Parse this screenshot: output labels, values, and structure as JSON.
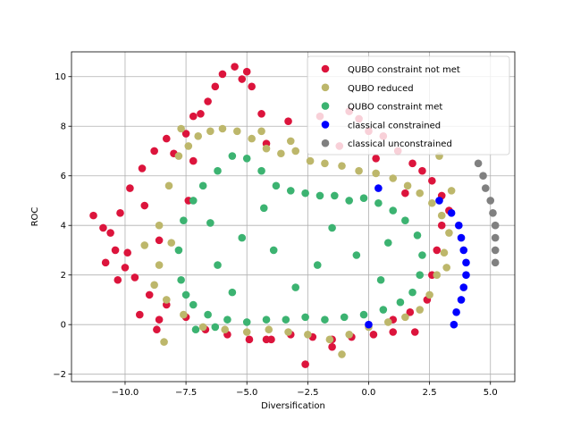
{
  "chart_data": {
    "type": "scatter",
    "title": "",
    "xlabel": "Diversification",
    "ylabel": "ROC",
    "xlim": [
      -12.2,
      6.0
    ],
    "ylim": [
      -2.3,
      11.0
    ],
    "x_ticks": [
      -10.0,
      -7.5,
      -5.0,
      -2.5,
      0.0,
      2.5,
      5.0
    ],
    "x_tick_labels": [
      "−10.0",
      "−7.5",
      "−5.0",
      "−2.5",
      "0.0",
      "2.5",
      "5.0"
    ],
    "y_ticks": [
      -2,
      0,
      2,
      4,
      6,
      8,
      10
    ],
    "y_tick_labels": [
      "−2",
      "0",
      "2",
      "4",
      "6",
      "8",
      "10"
    ],
    "grid": true,
    "legend_position": "top-right",
    "series": [
      {
        "name": "QUBO constraint not met",
        "color": "#dc143c",
        "points": [
          [
            -10.6,
            3.7
          ],
          [
            -10.4,
            3.0
          ],
          [
            -10.8,
            2.5
          ],
          [
            -10.2,
            4.5
          ],
          [
            -9.8,
            5.5
          ],
          [
            -9.3,
            6.3
          ],
          [
            -8.8,
            7.0
          ],
          [
            -8.3,
            7.5
          ],
          [
            -7.5,
            7.7
          ],
          [
            -7.2,
            8.4
          ],
          [
            -6.6,
            9.0
          ],
          [
            -6.3,
            9.6
          ],
          [
            -6.0,
            10.1
          ],
          [
            -5.5,
            10.4
          ],
          [
            -5.0,
            10.2
          ],
          [
            -4.8,
            9.6
          ],
          [
            -4.4,
            8.5
          ],
          [
            -3.3,
            8.2
          ],
          [
            -2.0,
            8.4
          ],
          [
            -0.8,
            8.6
          ],
          [
            -0.4,
            8.3
          ],
          [
            0.0,
            7.8
          ],
          [
            0.6,
            7.6
          ],
          [
            1.2,
            7.0
          ],
          [
            1.8,
            6.5
          ],
          [
            2.2,
            6.2
          ],
          [
            2.6,
            5.8
          ],
          [
            3.0,
            5.2
          ],
          [
            3.3,
            4.6
          ],
          [
            3.0,
            4.0
          ],
          [
            2.8,
            3.0
          ],
          [
            2.6,
            2.0
          ],
          [
            2.4,
            1.0
          ],
          [
            1.7,
            0.5
          ],
          [
            1.0,
            0.2
          ],
          [
            0.2,
            -0.4
          ],
          [
            -0.7,
            -0.5
          ],
          [
            -1.5,
            -0.6
          ],
          [
            -2.3,
            -0.5
          ],
          [
            -3.2,
            -0.4
          ],
          [
            -4.0,
            -0.6
          ],
          [
            -4.9,
            -0.6
          ],
          [
            -5.8,
            -0.4
          ],
          [
            -6.7,
            -0.2
          ],
          [
            -7.5,
            0.3
          ],
          [
            -8.3,
            0.8
          ],
          [
            -9.0,
            1.2
          ],
          [
            -9.6,
            1.9
          ],
          [
            -10.0,
            2.3
          ],
          [
            -11.3,
            4.4
          ],
          [
            -10.9,
            3.9
          ],
          [
            -10.3,
            1.8
          ],
          [
            -9.4,
            0.4
          ],
          [
            -8.7,
            -0.2
          ],
          [
            -8.6,
            0.2
          ],
          [
            -2.6,
            -1.6
          ],
          [
            -1.5,
            -0.9
          ],
          [
            -4.2,
            -0.6
          ],
          [
            1.0,
            -0.3
          ],
          [
            1.9,
            -0.3
          ],
          [
            -7.2,
            6.6
          ],
          [
            -8.0,
            6.9
          ],
          [
            -6.9,
            8.5
          ],
          [
            -5.2,
            9.9
          ],
          [
            -4.2,
            7.3
          ],
          [
            -1.2,
            7.2
          ],
          [
            0.3,
            6.7
          ],
          [
            1.5,
            5.3
          ],
          [
            -9.2,
            4.8
          ],
          [
            -8.6,
            3.4
          ],
          [
            -7.4,
            5.0
          ],
          [
            -9.9,
            2.9
          ]
        ]
      },
      {
        "name": "QUBO reduced",
        "color": "#bdb76b",
        "points": [
          [
            -9.2,
            3.2
          ],
          [
            -8.8,
            1.6
          ],
          [
            -8.6,
            4.0
          ],
          [
            -8.2,
            5.6
          ],
          [
            -7.8,
            6.8
          ],
          [
            -7.4,
            7.2
          ],
          [
            -7.0,
            7.6
          ],
          [
            -6.5,
            7.8
          ],
          [
            -6.0,
            7.9
          ],
          [
            -5.4,
            7.8
          ],
          [
            -4.8,
            7.5
          ],
          [
            -4.2,
            7.1
          ],
          [
            -3.6,
            6.9
          ],
          [
            -3.0,
            7.0
          ],
          [
            -2.4,
            6.6
          ],
          [
            -1.8,
            6.5
          ],
          [
            -1.1,
            6.4
          ],
          [
            -0.4,
            6.2
          ],
          [
            0.3,
            6.1
          ],
          [
            1.0,
            5.9
          ],
          [
            1.6,
            5.6
          ],
          [
            2.1,
            5.3
          ],
          [
            2.6,
            4.9
          ],
          [
            3.0,
            4.4
          ],
          [
            3.3,
            3.7
          ],
          [
            3.1,
            2.9
          ],
          [
            2.8,
            2.0
          ],
          [
            2.5,
            1.2
          ],
          [
            2.1,
            0.6
          ],
          [
            1.5,
            0.3
          ],
          [
            0.8,
            0.1
          ],
          [
            0.0,
            -0.1
          ],
          [
            -0.8,
            -0.4
          ],
          [
            -1.6,
            -0.6
          ],
          [
            -2.5,
            -0.4
          ],
          [
            -3.3,
            -0.3
          ],
          [
            -4.1,
            -0.2
          ],
          [
            -5.0,
            -0.3
          ],
          [
            -5.9,
            -0.2
          ],
          [
            -6.8,
            -0.1
          ],
          [
            -7.6,
            0.4
          ],
          [
            -8.3,
            1.0
          ],
          [
            -8.4,
            -0.7
          ],
          [
            -1.1,
            -1.2
          ],
          [
            -7.7,
            7.9
          ],
          [
            -4.4,
            7.8
          ],
          [
            -3.2,
            7.4
          ],
          [
            2.9,
            6.8
          ],
          [
            3.4,
            5.4
          ],
          [
            3.2,
            2.3
          ],
          [
            -8.6,
            2.4
          ],
          [
            -8.1,
            3.3
          ]
        ]
      },
      {
        "name": "QUBO constraint met",
        "color": "#3cb371",
        "points": [
          [
            -7.8,
            3.0
          ],
          [
            -7.7,
            1.8
          ],
          [
            -7.6,
            4.2
          ],
          [
            -7.2,
            5.0
          ],
          [
            -6.8,
            5.6
          ],
          [
            -6.2,
            6.2
          ],
          [
            -5.6,
            6.8
          ],
          [
            -5.0,
            6.7
          ],
          [
            -4.4,
            6.2
          ],
          [
            -3.8,
            5.6
          ],
          [
            -3.2,
            5.4
          ],
          [
            -2.6,
            5.3
          ],
          [
            -2.0,
            5.2
          ],
          [
            -1.4,
            5.2
          ],
          [
            -0.8,
            5.0
          ],
          [
            -0.2,
            5.1
          ],
          [
            0.4,
            4.9
          ],
          [
            1.0,
            4.6
          ],
          [
            1.5,
            4.2
          ],
          [
            2.0,
            3.6
          ],
          [
            2.2,
            2.8
          ],
          [
            2.1,
            2.0
          ],
          [
            1.8,
            1.3
          ],
          [
            1.3,
            0.9
          ],
          [
            0.6,
            0.6
          ],
          [
            -0.2,
            0.4
          ],
          [
            -1.0,
            0.3
          ],
          [
            -1.8,
            0.2
          ],
          [
            -2.6,
            0.3
          ],
          [
            -3.4,
            0.2
          ],
          [
            -4.2,
            0.2
          ],
          [
            -5.0,
            0.1
          ],
          [
            -5.8,
            0.2
          ],
          [
            -6.6,
            0.4
          ],
          [
            -7.2,
            0.8
          ],
          [
            -7.5,
            1.2
          ],
          [
            -7.1,
            -0.2
          ],
          [
            -6.3,
            -0.1
          ],
          [
            -3.9,
            3.0
          ],
          [
            -5.2,
            3.5
          ],
          [
            -6.2,
            2.4
          ],
          [
            -2.1,
            2.4
          ],
          [
            -0.5,
            2.8
          ],
          [
            0.8,
            3.3
          ],
          [
            -4.3,
            4.7
          ],
          [
            -1.5,
            3.9
          ],
          [
            -3.0,
            1.5
          ],
          [
            0.5,
            1.8
          ],
          [
            -5.6,
            1.3
          ],
          [
            -6.5,
            4.1
          ]
        ]
      },
      {
        "name": "classical constrained",
        "color": "#0000ff",
        "points": [
          [
            0.0,
            0.0
          ],
          [
            0.4,
            5.5
          ],
          [
            2.9,
            5.0
          ],
          [
            3.4,
            4.5
          ],
          [
            3.7,
            4.0
          ],
          [
            3.8,
            3.5
          ],
          [
            3.9,
            3.0
          ],
          [
            4.0,
            2.5
          ],
          [
            4.0,
            2.0
          ],
          [
            3.9,
            1.5
          ],
          [
            3.8,
            1.0
          ],
          [
            3.6,
            0.5
          ],
          [
            3.5,
            0.0
          ]
        ]
      },
      {
        "name": "classical unconstrained",
        "color": "#808080",
        "points": [
          [
            4.5,
            6.5
          ],
          [
            4.7,
            6.0
          ],
          [
            4.8,
            5.5
          ],
          [
            5.0,
            5.0
          ],
          [
            5.1,
            4.5
          ],
          [
            5.2,
            4.0
          ],
          [
            5.2,
            3.5
          ],
          [
            5.2,
            3.0
          ],
          [
            5.2,
            2.5
          ]
        ]
      }
    ]
  }
}
